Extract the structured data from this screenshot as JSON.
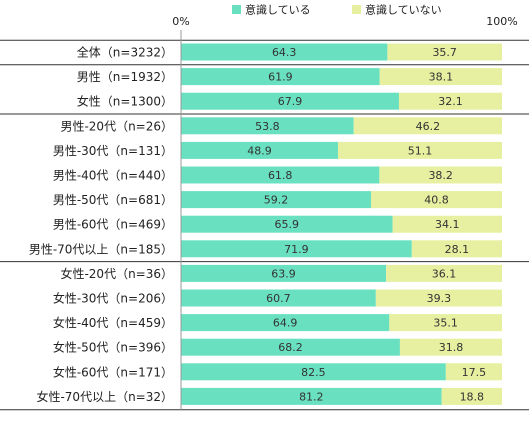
{
  "chart_data": {
    "type": "bar",
    "orientation": "horizontal",
    "stacked": true,
    "xlim": [
      0,
      100
    ],
    "x_ticks": [
      "0%",
      "100%"
    ],
    "legend_position": "top",
    "series": [
      {
        "name": "意識している",
        "color": "#69e0c0",
        "values": [
          64.3,
          61.9,
          67.9,
          53.8,
          48.9,
          61.8,
          59.2,
          65.9,
          71.9,
          63.9,
          60.7,
          64.9,
          68.2,
          82.5,
          81.2
        ]
      },
      {
        "name": "意識していない",
        "color": "#e6f0a0",
        "values": [
          35.7,
          38.1,
          32.1,
          46.2,
          51.1,
          38.2,
          40.8,
          34.1,
          28.1,
          36.1,
          39.3,
          35.1,
          31.8,
          17.5,
          18.8
        ]
      }
    ],
    "categories": [
      "全体（n=3232）",
      "男性（n=1932）",
      "女性（n=1300）",
      "男性-20代（n=26）",
      "男性-30代（n=131）",
      "男性-40代（n=440）",
      "男性-50代（n=681）",
      "男性-60代（n=469）",
      "男性-70代以上（n=185）",
      "女性-20代（n=36）",
      "女性-30代（n=206）",
      "女性-40代（n=459）",
      "女性-50代（n=396）",
      "女性-60代（n=171）",
      "女性-70代以上（n=32）"
    ],
    "group_separators_after": [
      0,
      2,
      8
    ]
  }
}
